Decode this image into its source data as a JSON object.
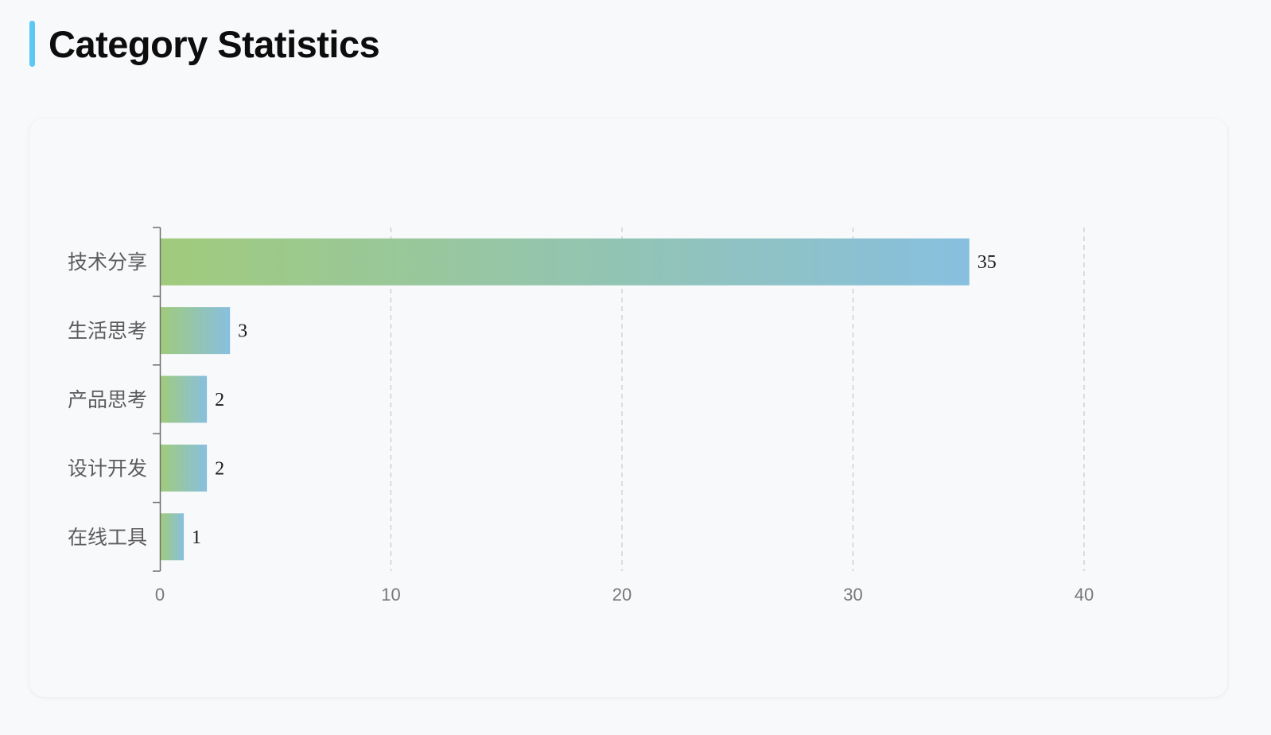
{
  "page": {
    "title": "Category Statistics",
    "accent_color": "#5bc8f5"
  },
  "chart_data": {
    "type": "bar",
    "orientation": "horizontal",
    "categories": [
      "技术分享",
      "生活思考",
      "产品思考",
      "设计开发",
      "在线工具"
    ],
    "values": [
      35,
      3,
      2,
      2,
      1
    ],
    "xlim": [
      0,
      45
    ],
    "x_ticks": [
      0,
      10,
      20,
      30,
      40
    ],
    "grid": true,
    "grid_style": "dashed-vertical",
    "data_labels": true,
    "bar_gradient": [
      "#a0cb7c",
      "#88bfdf"
    ]
  }
}
